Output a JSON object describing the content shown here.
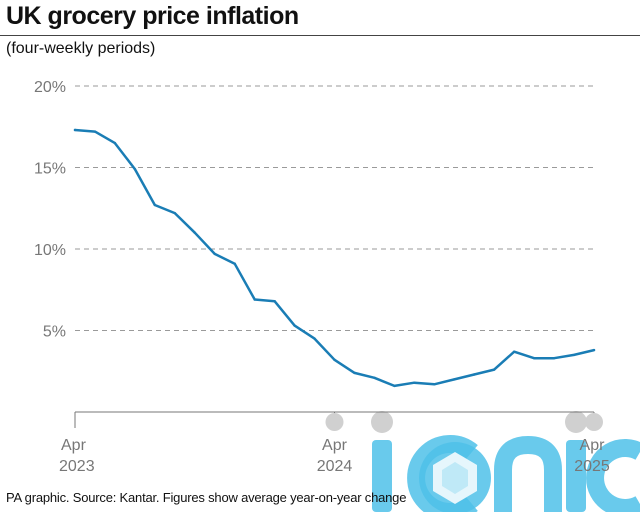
{
  "header": {
    "title": "UK grocery price inflation",
    "subtitle": "(four-weekly periods)"
  },
  "footer": {
    "source": "PA graphic. Source: Kantar. Figures show average year-on-year change"
  },
  "watermark": {
    "text": "iconic",
    "color": "#4fc1e9"
  },
  "chart_data": {
    "type": "line",
    "title": "UK grocery price inflation",
    "subtitle": "(four-weekly periods)",
    "xlabel": "",
    "ylabel": "",
    "ylim": [
      0,
      20
    ],
    "yticks": [
      {
        "value": 5,
        "label": "5%"
      },
      {
        "value": 10,
        "label": "10%"
      },
      {
        "value": 15,
        "label": "15%"
      },
      {
        "value": 20,
        "label": "20%"
      }
    ],
    "xticks": [
      {
        "index": 0,
        "label_top": "Apr",
        "label_bottom": "2023"
      },
      {
        "index": 13,
        "label_top": "Apr",
        "label_bottom": "2024"
      },
      {
        "index": 26,
        "label_top": "Apr",
        "label_bottom": "2025"
      }
    ],
    "grid": "horizontal dashed",
    "line_color": "#1a7db5",
    "series": [
      {
        "values": [
          17.3,
          17.2,
          16.5,
          14.9,
          12.7,
          12.2,
          11.0,
          9.7,
          9.1,
          6.9,
          6.8,
          5.3,
          4.5,
          3.2,
          2.4,
          2.1,
          1.6,
          1.8,
          1.7,
          2.0,
          2.3,
          2.6,
          3.7,
          3.3,
          3.3,
          3.5,
          3.8
        ]
      }
    ]
  }
}
